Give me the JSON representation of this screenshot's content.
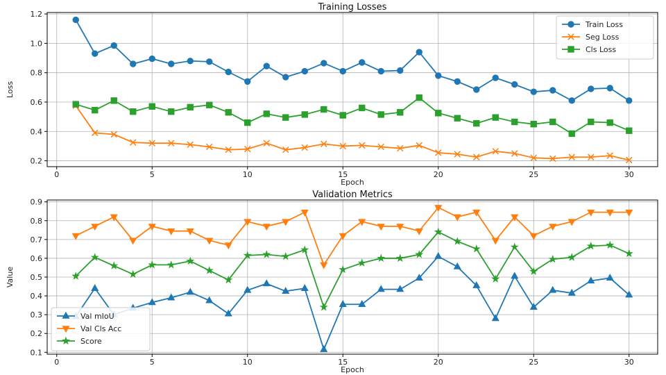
{
  "chart_data": [
    {
      "type": "line",
      "title": "Training Losses",
      "xlabel": "Epoch",
      "ylabel": "Loss",
      "xlim": [
        -0.5,
        31.5
      ],
      "ylim": [
        0.16,
        1.21
      ],
      "xticks": [
        0,
        5,
        10,
        15,
        20,
        25,
        30
      ],
      "yticks": [
        0.2,
        0.4,
        0.6,
        0.8,
        1.0,
        1.2
      ],
      "ytick_labels": [
        "0.2",
        "0.4",
        "0.6",
        "0.8",
        "1.0",
        "1.2"
      ],
      "grid": true,
      "legend_position": "top-right",
      "x": [
        1,
        2,
        3,
        4,
        5,
        6,
        7,
        8,
        9,
        10,
        11,
        12,
        13,
        14,
        15,
        16,
        17,
        18,
        19,
        20,
        21,
        22,
        23,
        24,
        25,
        26,
        27,
        28,
        29,
        30
      ],
      "series": [
        {
          "name": "Train Loss",
          "color": "#1f77b4",
          "marker": "circle",
          "values": [
            1.16,
            0.93,
            0.985,
            0.86,
            0.895,
            0.86,
            0.88,
            0.875,
            0.805,
            0.74,
            0.845,
            0.77,
            0.81,
            0.865,
            0.81,
            0.87,
            0.81,
            0.815,
            0.94,
            0.78,
            0.74,
            0.685,
            0.765,
            0.72,
            0.67,
            0.68,
            0.61,
            0.69,
            0.695,
            0.61
          ]
        },
        {
          "name": "Seg Loss",
          "color": "#ff7f0e",
          "marker": "x",
          "values": [
            0.575,
            0.39,
            0.38,
            0.325,
            0.32,
            0.32,
            0.31,
            0.295,
            0.275,
            0.28,
            0.32,
            0.275,
            0.29,
            0.315,
            0.3,
            0.305,
            0.295,
            0.285,
            0.305,
            0.255,
            0.245,
            0.225,
            0.265,
            0.25,
            0.22,
            0.215,
            0.225,
            0.225,
            0.235,
            0.205
          ]
        },
        {
          "name": "Cls Loss",
          "color": "#2ca02c",
          "marker": "square",
          "values": [
            0.585,
            0.545,
            0.61,
            0.535,
            0.57,
            0.535,
            0.565,
            0.58,
            0.53,
            0.46,
            0.52,
            0.495,
            0.515,
            0.55,
            0.51,
            0.56,
            0.515,
            0.53,
            0.63,
            0.525,
            0.49,
            0.455,
            0.495,
            0.465,
            0.45,
            0.465,
            0.385,
            0.465,
            0.46,
            0.405
          ]
        }
      ]
    },
    {
      "type": "line",
      "title": "Validation Metrics",
      "xlabel": "Epoch",
      "ylabel": "Value",
      "xlim": [
        -0.5,
        31.5
      ],
      "ylim": [
        0.09,
        0.91
      ],
      "xticks": [
        0,
        5,
        10,
        15,
        20,
        25,
        30
      ],
      "yticks": [
        0.1,
        0.2,
        0.3,
        0.4,
        0.5,
        0.6,
        0.7,
        0.8,
        0.9
      ],
      "ytick_labels": [
        "0.1",
        "0.2",
        "0.3",
        "0.4",
        "0.5",
        "0.6",
        "0.7",
        "0.8",
        "0.9"
      ],
      "grid": true,
      "legend_position": "bottom-left",
      "x": [
        1,
        2,
        3,
        4,
        5,
        6,
        7,
        8,
        9,
        10,
        11,
        12,
        13,
        14,
        15,
        16,
        17,
        18,
        19,
        20,
        21,
        22,
        23,
        24,
        25,
        26,
        27,
        28,
        29,
        30
      ],
      "series": [
        {
          "name": "Val mIoU",
          "color": "#1f77b4",
          "marker": "triangle-up",
          "values": [
            0.29,
            0.44,
            0.3,
            0.335,
            0.365,
            0.39,
            0.42,
            0.375,
            0.305,
            0.43,
            0.465,
            0.425,
            0.44,
            0.115,
            0.355,
            0.355,
            0.435,
            0.435,
            0.495,
            0.61,
            0.555,
            0.455,
            0.28,
            0.505,
            0.34,
            0.43,
            0.415,
            0.48,
            0.495,
            0.405
          ]
        },
        {
          "name": "Val Cls Acc",
          "color": "#ff7f0e",
          "marker": "triangle-down",
          "values": [
            0.72,
            0.77,
            0.82,
            0.695,
            0.77,
            0.745,
            0.745,
            0.695,
            0.67,
            0.795,
            0.77,
            0.795,
            0.845,
            0.565,
            0.72,
            0.795,
            0.77,
            0.77,
            0.745,
            0.87,
            0.82,
            0.845,
            0.695,
            0.82,
            0.72,
            0.77,
            0.795,
            0.845,
            0.845,
            0.845
          ]
        },
        {
          "name": "Score",
          "color": "#2ca02c",
          "marker": "star",
          "values": [
            0.505,
            0.605,
            0.56,
            0.515,
            0.565,
            0.565,
            0.585,
            0.535,
            0.485,
            0.615,
            0.62,
            0.61,
            0.645,
            0.34,
            0.54,
            0.575,
            0.6,
            0.6,
            0.62,
            0.74,
            0.69,
            0.65,
            0.49,
            0.66,
            0.53,
            0.595,
            0.605,
            0.665,
            0.67,
            0.625
          ]
        }
      ]
    }
  ]
}
